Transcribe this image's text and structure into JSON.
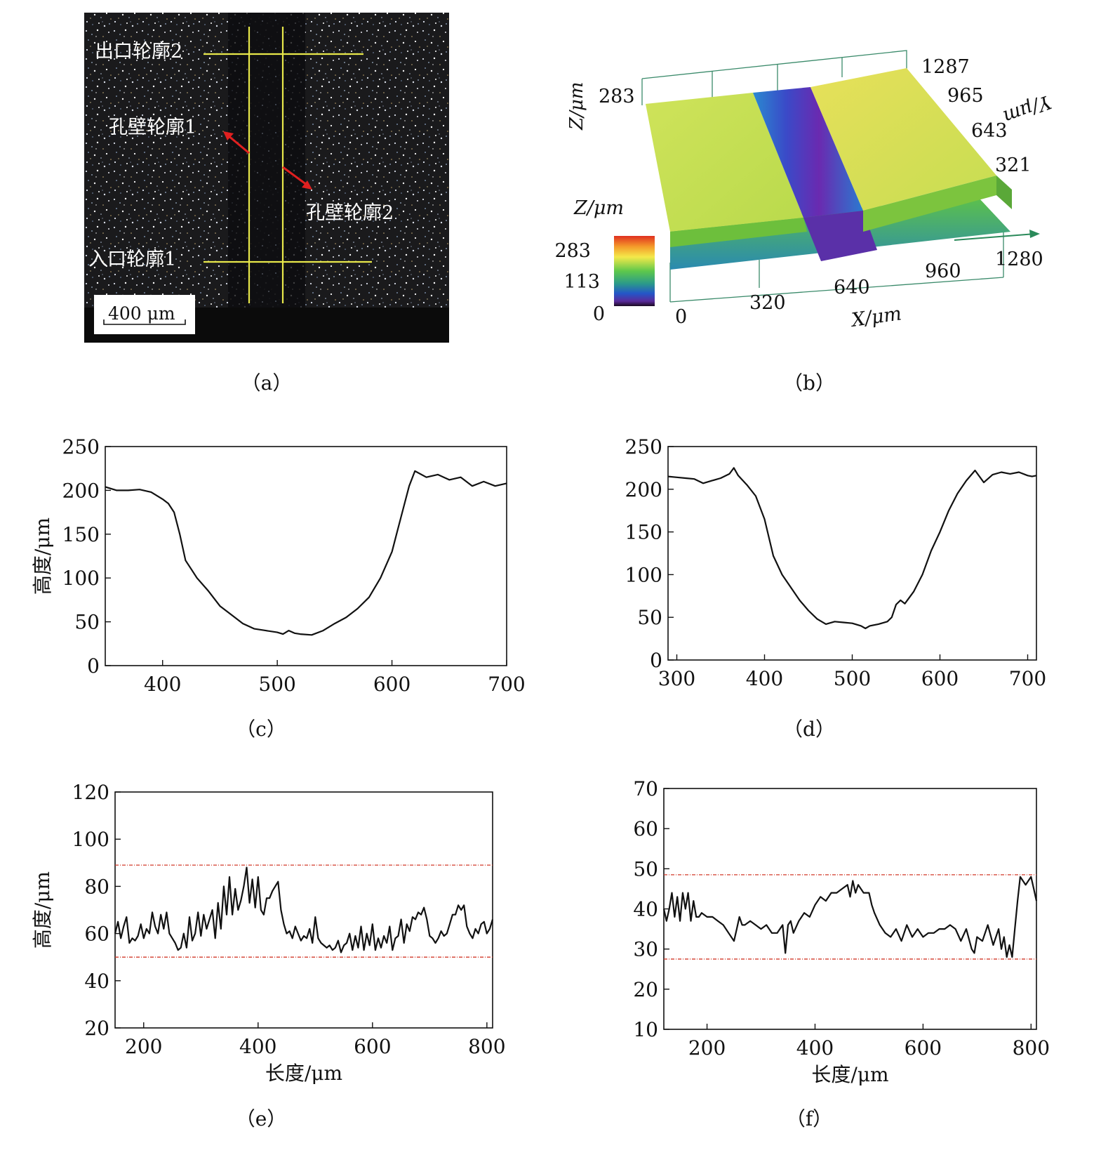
{
  "panels": {
    "a": {
      "caption": "（a）",
      "labels": [
        "出口轮廓2",
        "孔壁轮廓1",
        "孔壁轮廓2",
        "入口轮廓1"
      ],
      "scale_bar": "400 μm"
    },
    "b": {
      "caption": "（b）",
      "z_label_axis": "Z/μm",
      "z_tick_axis": "283",
      "y_label": "Y/μm",
      "y_ticks": [
        "1287",
        "965",
        "643",
        "321"
      ],
      "colorbar_label": "Z/μm",
      "colorbar_ticks": [
        "283",
        "113",
        "0"
      ],
      "x_ticks": [
        "0",
        "320",
        "640",
        "960",
        "1280"
      ],
      "x_label": "X/μm"
    },
    "c": {
      "caption": "（c）"
    },
    "d": {
      "caption": "（d）"
    },
    "e": {
      "caption": "（e）"
    },
    "f": {
      "caption": "（f）"
    }
  },
  "chart_data": [
    {
      "panel": "c",
      "type": "line",
      "ylabel": "高度/μm",
      "xlabel": "",
      "xlim": [
        350,
        700
      ],
      "ylim": [
        0,
        250
      ],
      "xticks": [
        400,
        500,
        600,
        700
      ],
      "yticks": [
        0,
        50,
        100,
        150,
        200,
        250
      ],
      "series": [
        {
          "x": [
            350,
            360,
            370,
            380,
            390,
            400,
            405,
            410,
            415,
            420,
            425,
            430,
            440,
            450,
            460,
            470,
            480,
            490,
            500,
            505,
            510,
            515,
            520,
            530,
            540,
            550,
            560,
            570,
            580,
            590,
            600,
            605,
            610,
            615,
            620,
            630,
            640,
            650,
            660,
            670,
            680,
            690,
            700
          ],
          "y": [
            204,
            200,
            200,
            201,
            198,
            190,
            185,
            175,
            150,
            120,
            110,
            100,
            85,
            68,
            58,
            48,
            42,
            40,
            38,
            36,
            40,
            37,
            36,
            35,
            40,
            48,
            55,
            65,
            78,
            100,
            130,
            155,
            180,
            205,
            222,
            215,
            218,
            212,
            215,
            205,
            210,
            205,
            208
          ]
        }
      ]
    },
    {
      "panel": "d",
      "type": "line",
      "ylabel": "",
      "xlabel": "",
      "xlim": [
        290,
        710
      ],
      "ylim": [
        0,
        250
      ],
      "xticks": [
        300,
        400,
        500,
        600,
        700
      ],
      "yticks": [
        0,
        50,
        100,
        150,
        200,
        250
      ],
      "series": [
        {
          "x": [
            290,
            300,
            310,
            320,
            330,
            340,
            350,
            360,
            365,
            370,
            380,
            390,
            400,
            410,
            420,
            430,
            440,
            450,
            460,
            470,
            480,
            490,
            500,
            510,
            515,
            520,
            530,
            540,
            545,
            550,
            555,
            560,
            570,
            580,
            590,
            600,
            610,
            620,
            630,
            640,
            645,
            650,
            660,
            670,
            680,
            690,
            700,
            705,
            710
          ],
          "y": [
            215,
            214,
            213,
            212,
            207,
            210,
            213,
            218,
            225,
            216,
            205,
            192,
            165,
            122,
            100,
            85,
            70,
            58,
            48,
            42,
            45,
            44,
            43,
            40,
            37,
            40,
            42,
            45,
            50,
            65,
            70,
            66,
            80,
            100,
            128,
            150,
            175,
            195,
            210,
            222,
            215,
            208,
            217,
            220,
            218,
            220,
            216,
            215,
            216
          ]
        }
      ]
    },
    {
      "panel": "e",
      "type": "line",
      "ylabel": "高度/μm",
      "xlabel": "长度/μm",
      "xlim": [
        150,
        810
      ],
      "ylim": [
        20,
        120
      ],
      "xticks": [
        200,
        400,
        600,
        800
      ],
      "yticks": [
        20,
        40,
        60,
        80,
        100,
        120
      ],
      "reference_lines": [
        89,
        50
      ],
      "series": [
        {
          "x": [
            150,
            155,
            160,
            165,
            170,
            175,
            180,
            185,
            190,
            195,
            200,
            205,
            210,
            215,
            220,
            225,
            230,
            235,
            240,
            245,
            250,
            255,
            260,
            265,
            270,
            275,
            280,
            285,
            290,
            295,
            300,
            305,
            310,
            315,
            320,
            325,
            330,
            335,
            340,
            345,
            350,
            355,
            360,
            365,
            370,
            375,
            380,
            385,
            390,
            395,
            400,
            405,
            410,
            415,
            420,
            425,
            430,
            435,
            440,
            445,
            450,
            455,
            460,
            465,
            470,
            475,
            480,
            485,
            490,
            495,
            500,
            505,
            510,
            515,
            520,
            525,
            530,
            535,
            540,
            545,
            550,
            555,
            560,
            565,
            570,
            575,
            580,
            585,
            590,
            595,
            600,
            605,
            610,
            615,
            620,
            625,
            630,
            635,
            640,
            645,
            650,
            655,
            660,
            665,
            670,
            675,
            680,
            685,
            690,
            695,
            700,
            705,
            710,
            715,
            720,
            725,
            730,
            735,
            740,
            745,
            750,
            755,
            760,
            765,
            770,
            775,
            780,
            785,
            790,
            795,
            800,
            805,
            810
          ],
          "y": [
            60,
            65,
            58,
            63,
            67,
            56,
            58,
            57,
            59,
            64,
            58,
            62,
            60,
            69,
            63,
            60,
            68,
            62,
            69,
            60,
            58,
            56,
            53,
            54,
            60,
            54,
            67,
            57,
            60,
            69,
            59,
            68,
            62,
            66,
            70,
            58,
            73,
            62,
            80,
            68,
            84,
            68,
            79,
            70,
            74,
            80,
            88,
            73,
            83,
            71,
            84,
            70,
            68,
            75,
            75,
            78,
            80,
            82,
            70,
            64,
            60,
            61,
            58,
            63,
            60,
            57,
            59,
            58,
            62,
            56,
            67,
            58,
            56,
            55,
            54,
            55,
            53,
            54,
            57,
            52,
            55,
            56,
            60,
            53,
            59,
            54,
            63,
            53,
            60,
            55,
            64,
            53,
            58,
            54,
            59,
            56,
            63,
            53,
            58,
            59,
            66,
            56,
            64,
            61,
            67,
            66,
            69,
            68,
            71,
            66,
            59,
            58,
            56,
            58,
            61,
            59,
            60,
            64,
            68,
            68,
            72,
            70,
            72,
            63,
            60,
            58,
            62,
            60,
            64,
            65,
            60,
            62,
            66
          ]
        }
      ]
    },
    {
      "panel": "f",
      "type": "line",
      "ylabel": "",
      "xlabel": "长度/μm",
      "xlim": [
        120,
        810
      ],
      "ylim": [
        10,
        70
      ],
      "xticks": [
        200,
        400,
        600,
        800
      ],
      "yticks": [
        10,
        20,
        30,
        40,
        50,
        60,
        70
      ],
      "reference_lines": [
        48.5,
        27.5
      ],
      "series": [
        {
          "x": [
            120,
            125,
            130,
            135,
            140,
            145,
            150,
            155,
            160,
            165,
            170,
            175,
            180,
            185,
            190,
            200,
            210,
            220,
            230,
            240,
            250,
            255,
            260,
            265,
            270,
            280,
            290,
            300,
            310,
            320,
            330,
            340,
            345,
            350,
            355,
            360,
            370,
            380,
            390,
            400,
            410,
            420,
            430,
            440,
            450,
            460,
            465,
            470,
            475,
            480,
            490,
            500,
            505,
            510,
            520,
            530,
            540,
            550,
            560,
            570,
            580,
            590,
            600,
            610,
            620,
            630,
            640,
            650,
            660,
            670,
            680,
            690,
            695,
            700,
            710,
            720,
            730,
            740,
            745,
            750,
            755,
            760,
            765,
            770,
            775,
            780,
            790,
            800,
            805,
            810
          ],
          "y": [
            40,
            37,
            40,
            44,
            38,
            43,
            37,
            44,
            40,
            44,
            37,
            42,
            38,
            38,
            39,
            38,
            38,
            37,
            36,
            34,
            32,
            35,
            38,
            36,
            36,
            37,
            36,
            35,
            36,
            34,
            34,
            36,
            29,
            36,
            37,
            34,
            37,
            39,
            38,
            41,
            43,
            42,
            44,
            44,
            45,
            46,
            43,
            47,
            44,
            46,
            44,
            44,
            41,
            39,
            36,
            34,
            33,
            35,
            32,
            36,
            33,
            35,
            33,
            34,
            34,
            35,
            35,
            36,
            35,
            32,
            35,
            30,
            29,
            33,
            32,
            36,
            31,
            35,
            30,
            33,
            28,
            31,
            28,
            35,
            42,
            48,
            46,
            48,
            45,
            42
          ]
        }
      ]
    }
  ]
}
